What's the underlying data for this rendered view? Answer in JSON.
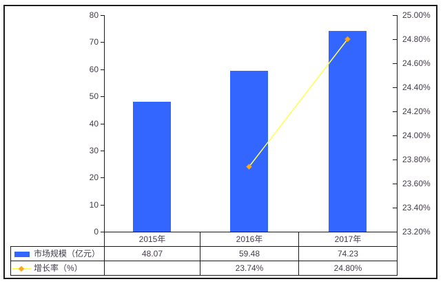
{
  "chart_data": {
    "type": "bar",
    "combo": "bar+line",
    "title": "",
    "categories": [
      "2015年",
      "2016年",
      "2017年"
    ],
    "series": [
      {
        "name": "市场规模（亿元）",
        "type": "bar",
        "axis": "left",
        "values": [
          48.07,
          59.48,
          74.23
        ],
        "display": [
          "48.07",
          "59.48",
          "74.23"
        ]
      },
      {
        "name": "增长率（%）",
        "type": "line",
        "axis": "right",
        "values": [
          null,
          23.74,
          24.8
        ],
        "display": [
          "",
          "23.74%",
          "24.80%"
        ]
      }
    ],
    "left_axis": {
      "min": 0,
      "max": 80,
      "step": 10,
      "ticks": [
        "80",
        "70",
        "60",
        "50",
        "40",
        "30",
        "20",
        "10",
        "0"
      ]
    },
    "right_axis": {
      "min": 23.2,
      "max": 25.0,
      "step": 0.2,
      "ticks": [
        "25.00%",
        "24.80%",
        "24.60%",
        "24.40%",
        "24.20%",
        "24.00%",
        "23.80%",
        "23.60%",
        "23.40%",
        "23.20%"
      ]
    },
    "grid": false,
    "legend_position": "data-table-left"
  },
  "colors": {
    "bar": "#3366ff",
    "line": "#ffff4d",
    "marker": "#ffa81f",
    "marker_edge": "#e09000",
    "text": "#443c4c",
    "border": "#1b1b1b"
  }
}
